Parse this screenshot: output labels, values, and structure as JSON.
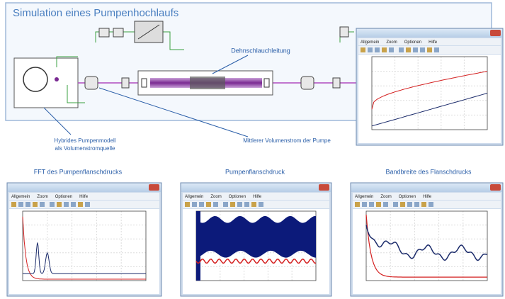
{
  "header": {
    "title": "Simulation eines Pumpenhochlaufs"
  },
  "annotations": {
    "hose": "Dehnschlauchleitung",
    "pump_model": [
      "Hybrides Pumpenmodell",
      "als Volumenstromquelle"
    ],
    "flow": "Mittlerer Volumenstrom der Pumpe"
  },
  "captions": [
    "FFT des Pumpenflanschdrucks",
    "Pumpenflanschdruck",
    "Bandbreite des Flanschdrucks"
  ],
  "menu": [
    "Allgemein",
    "Zoom",
    "Optionen",
    "Hilfe"
  ]
}
